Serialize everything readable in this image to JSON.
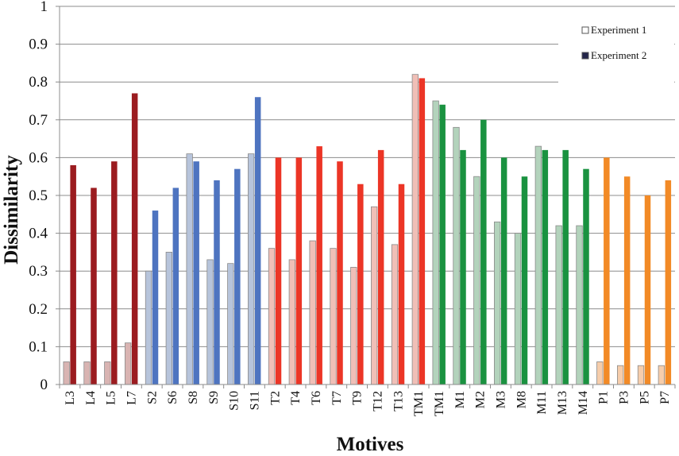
{
  "chart_data": {
    "type": "bar",
    "title": "",
    "xlabel": "Motives",
    "ylabel": "Dissimilarity",
    "ylim": [
      0,
      1
    ],
    "yticks": [
      "0",
      "0.1",
      "0.2",
      "0.3",
      "0.4",
      "0.5",
      "0.6",
      "0.7",
      "0.8",
      "0.9",
      "1"
    ],
    "grid": true,
    "legend_position": "top-right",
    "categories": [
      "L3",
      "L4",
      "L5",
      "L7",
      "S2",
      "S6",
      "S8",
      "S9",
      "S10",
      "S11",
      "T2",
      "T4",
      "T6",
      "T7",
      "T9",
      "T12",
      "T13",
      "TM1",
      "TM1",
      "M1",
      "M2",
      "M3",
      "M8",
      "M11",
      "M13",
      "M14",
      "P1",
      "P3",
      "P5",
      "P7"
    ],
    "groups": [
      "L",
      "L",
      "L",
      "L",
      "S",
      "S",
      "S",
      "S",
      "S",
      "S",
      "T",
      "T",
      "T",
      "T",
      "T",
      "T",
      "T",
      "T",
      "M",
      "M",
      "M",
      "M",
      "M",
      "M",
      "M",
      "M",
      "P",
      "P",
      "P",
      "P"
    ],
    "group_colors": {
      "L": {
        "dark": "#9b1c20",
        "light": "#d9b4b2"
      },
      "S": {
        "dark": "#4e74c0",
        "light": "#b7c4db"
      },
      "T": {
        "dark": "#ec3526",
        "light": "#f0bfb7"
      },
      "M": {
        "dark": "#1a9240",
        "light": "#b3d3bc"
      },
      "P": {
        "dark": "#f28a26",
        "light": "#f6cdab"
      }
    },
    "series": [
      {
        "name": "Experiment 1",
        "legend_swatch": "#ffffff",
        "values": [
          0.06,
          0.06,
          0.06,
          0.11,
          0.3,
          0.35,
          0.61,
          0.33,
          0.32,
          0.61,
          0.36,
          0.33,
          0.38,
          0.36,
          0.31,
          0.47,
          0.37,
          0.82,
          0.75,
          0.68,
          0.55,
          0.43,
          0.4,
          0.63,
          0.42,
          0.42,
          0.06,
          0.05,
          0.05,
          0.05
        ]
      },
      {
        "name": "Experiment 2",
        "legend_swatch": "#23254a",
        "values": [
          0.58,
          0.52,
          0.59,
          0.77,
          0.46,
          0.52,
          0.59,
          0.54,
          0.57,
          0.76,
          0.6,
          0.6,
          0.63,
          0.59,
          0.53,
          0.62,
          0.53,
          0.81,
          0.74,
          0.62,
          0.7,
          0.6,
          0.55,
          0.62,
          0.62,
          0.57,
          0.6,
          0.55,
          0.5,
          0.54
        ]
      }
    ]
  }
}
